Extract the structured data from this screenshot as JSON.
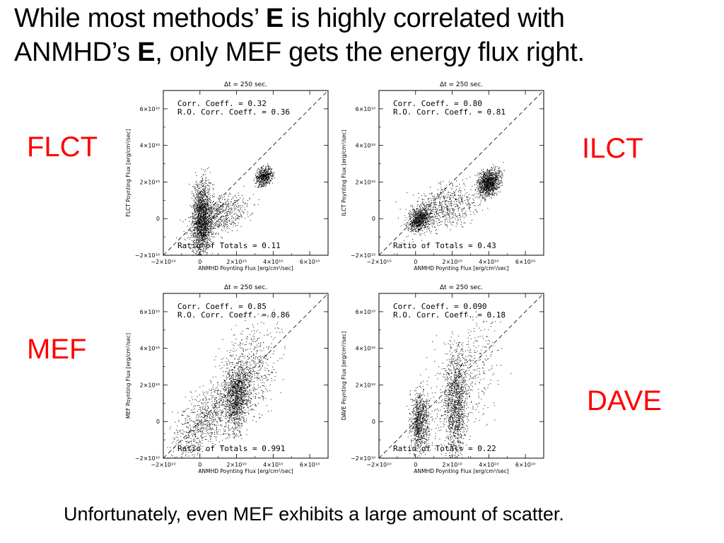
{
  "slide": {
    "title_part1": "While most methods’ ",
    "title_e1": "E",
    "title_part2": " is highly correlated with",
    "title_part3": "ANMHD’s ",
    "title_e2": "E",
    "title_part4": ", only MEF gets the energy flux right.",
    "caption": "Unfortunately, even MEF exhibits a large amount of scatter.",
    "label_color": "#ff0000"
  },
  "labels": {
    "flct": "FLCT",
    "ilct": "ILCT",
    "mef": "MEF",
    "dave": "DAVE"
  },
  "chart_data": [
    {
      "type": "scatter",
      "method": "FLCT",
      "title": "Δt =  250 sec.",
      "xlabel": "ANMHD Poynting Flux [erg/cm²/sec]",
      "ylabel": "FLCT Poynting Flux [erg/cm²/sec]",
      "xlim": [
        -20000000000.0,
        70000000000.0
      ],
      "ylim": [
        -20000000000.0,
        70000000000.0
      ],
      "xticks": [
        "−2×10¹⁰",
        "0",
        "2×10¹⁰",
        "4×10¹⁰",
        "6×10¹⁰"
      ],
      "yticks": [
        "−2×10¹⁰",
        "0",
        "2×10¹⁰",
        "4×10¹⁰",
        "6×10¹⁰"
      ],
      "reference_line": "y = x (dashed)",
      "corr_coeff": "Corr. Coeff. = 0.32",
      "ro_corr_coeff": "R.O. Corr. Coeff. = 0.36",
      "ratio_of_totals": "Ratio of Totals = 0.11"
    },
    {
      "type": "scatter",
      "method": "ILCT",
      "title": "Δt =  250 sec.",
      "xlabel": "ANMHD Poynting Flux [erg/cm²/sec]",
      "ylabel": "ILCT Poynting Flux [erg/cm²/sec]",
      "xlim": [
        -20000000000.0,
        70000000000.0
      ],
      "ylim": [
        -20000000000.0,
        70000000000.0
      ],
      "xticks": [
        "−2×10¹⁰",
        "0",
        "2×10¹⁰",
        "4×10¹⁰",
        "6×10¹⁰"
      ],
      "yticks": [
        "−2×10¹⁰",
        "0",
        "2×10¹⁰",
        "4×10¹⁰",
        "6×10¹⁰"
      ],
      "reference_line": "y = x (dashed)",
      "corr_coeff": "Corr. Coeff. = 0.80",
      "ro_corr_coeff": "R.O. Corr. Coeff. = 0.81",
      "ratio_of_totals": "Ratio of Totals = 0.43"
    },
    {
      "type": "scatter",
      "method": "MEF",
      "title": "Δt =  250 sec.",
      "xlabel": "ANMHD Poynting Flux [erg/cm²/sec]",
      "ylabel": "MEF Poynting Flux [erg/cm²/sec]",
      "xlim": [
        -20000000000.0,
        70000000000.0
      ],
      "ylim": [
        -20000000000.0,
        70000000000.0
      ],
      "xticks": [
        "−2×10¹⁰",
        "0",
        "2×10¹⁰",
        "4×10¹⁰",
        "6×10¹⁰"
      ],
      "yticks": [
        "−2×10¹⁰",
        "0",
        "2×10¹⁰",
        "4×10¹⁰",
        "6×10¹⁰"
      ],
      "reference_line": "y = x (dashed)",
      "corr_coeff": "Corr. Coeff. = 0.85",
      "ro_corr_coeff": "R.O. Corr. Coeff. = 0.86",
      "ratio_of_totals": "Ratio of Totals = 0.991"
    },
    {
      "type": "scatter",
      "method": "DAVE",
      "title": "Δt =  250 sec.",
      "xlabel": "ANMHD Poynting Flux [erg/cm²/sec]",
      "ylabel": "DAVE Poynting Flux [erg/cm²/sec]",
      "xlim": [
        -20000000000.0,
        70000000000.0
      ],
      "ylim": [
        -20000000000.0,
        70000000000.0
      ],
      "xticks": [
        "−2×10¹⁰",
        "0",
        "2×10¹⁰",
        "4×10¹⁰",
        "6×10¹⁰"
      ],
      "yticks": [
        "−2×10¹⁰",
        "0",
        "2×10¹⁰",
        "4×10¹⁰",
        "6×10¹⁰"
      ],
      "reference_line": "y = x (dashed)",
      "corr_coeff": "Corr. Coeff. = 0.090",
      "ro_corr_coeff": "R.O. Corr. Coeff. = 0.18",
      "ratio_of_totals": "Ratio of Totals = 0.22"
    }
  ]
}
